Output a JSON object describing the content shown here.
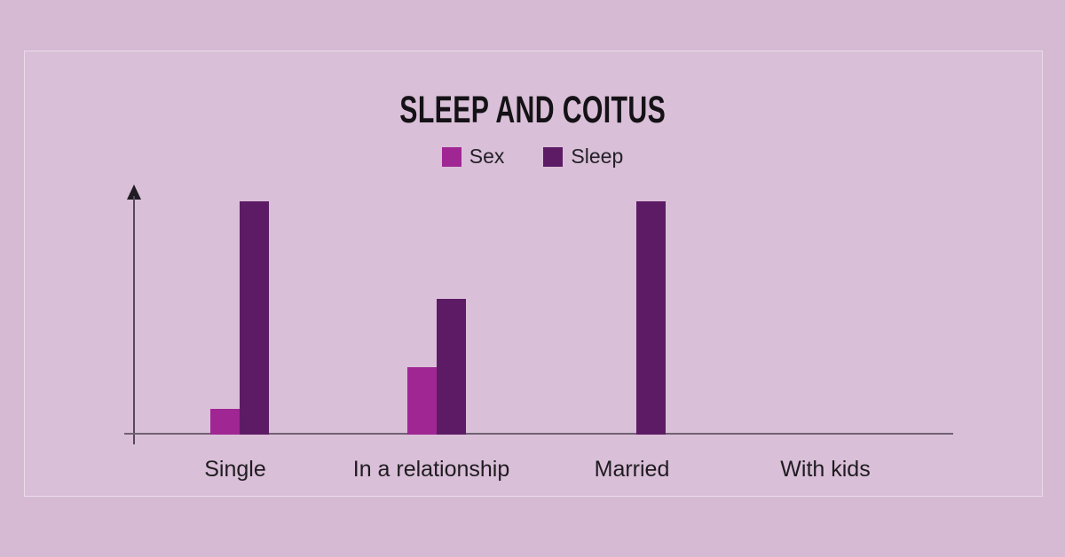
{
  "page": {
    "background": "#d6bad4",
    "panel_background": "#dabfd8",
    "axis_color": "#6f6173",
    "text_color": "#1e1c20"
  },
  "chart_data": {
    "type": "bar",
    "title": "SLEEP AND COITUS",
    "categories": [
      "Single",
      "In a relationship",
      "Married",
      "With kids"
    ],
    "series": [
      {
        "name": "Sex",
        "color": "#a02694",
        "values": [
          1.1,
          2.9,
          0,
          0
        ]
      },
      {
        "name": "Sleep",
        "color": "#5c1b64",
        "values": [
          10,
          5.8,
          10,
          0
        ]
      }
    ],
    "ylim": [
      0,
      10
    ],
    "xlabel": "",
    "ylabel": "",
    "grid": false,
    "axis_tick_labels": "none",
    "legend_position": "top-center"
  }
}
